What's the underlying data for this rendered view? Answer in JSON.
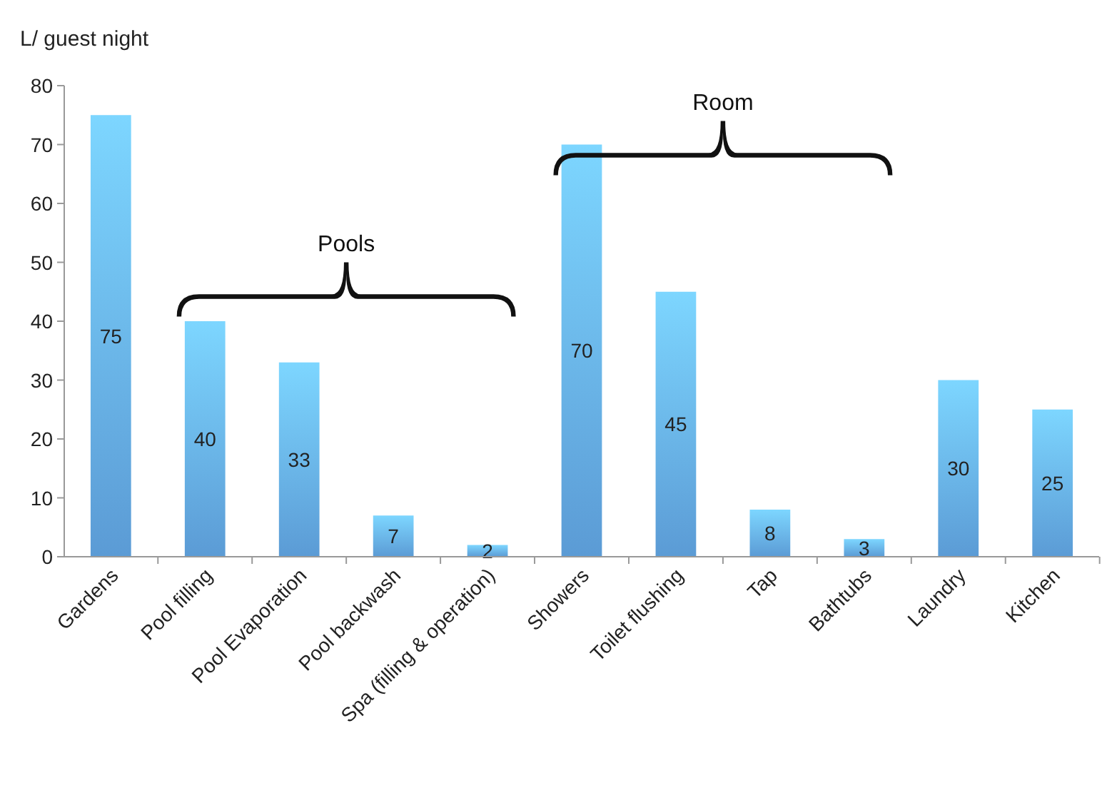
{
  "chart_data": {
    "type": "bar",
    "ylabel": "L/ guest night",
    "categories": [
      "Gardens",
      "Pool filling",
      "Pool Evaporation",
      "Pool backwash",
      "Spa (filling & operation)",
      "Showers",
      "Toilet flushing",
      "Tap",
      "Bathtubs",
      "Laundry",
      "Kitchen"
    ],
    "values": [
      75,
      40,
      33,
      7,
      2,
      70,
      45,
      8,
      3,
      30,
      25
    ],
    "color": "#5b9bd5",
    "ylim": [
      0,
      80
    ],
    "yticks": [
      0,
      10,
      20,
      30,
      40,
      50,
      60,
      70,
      80
    ],
    "grid": false,
    "data_labels": true,
    "annotations": [
      "Pools",
      "Room"
    ]
  }
}
